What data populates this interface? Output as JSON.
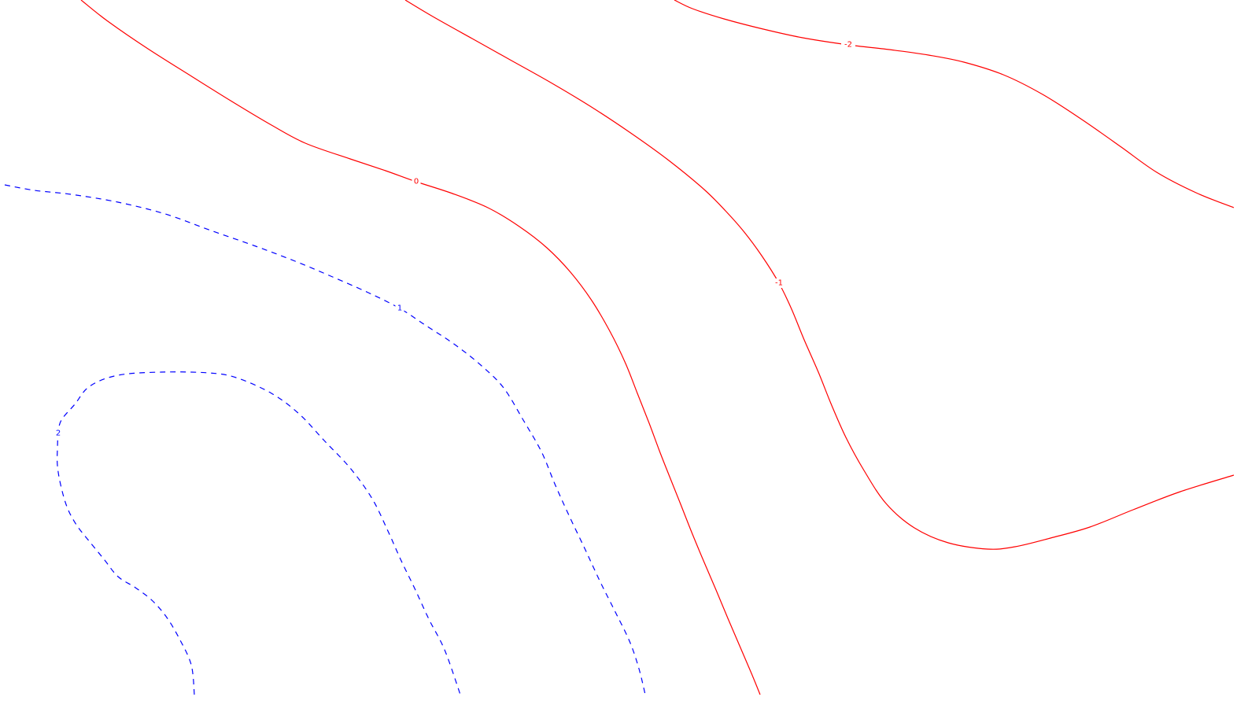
{
  "chart_data": {
    "type": "contour",
    "title": "",
    "xlabel": "",
    "ylabel": "",
    "grid": false,
    "legend": "none",
    "colors": {
      "positive": "#0000ff",
      "negative": "#ff0000",
      "background": "#ffffff"
    },
    "contours": [
      {
        "level": 2,
        "label": "2",
        "sign": "positive",
        "linestyle": "dashed",
        "color": "#0000ff",
        "path": [
          [
            247,
            883
          ],
          [
            243,
            845
          ],
          [
            228,
            812
          ],
          [
            212,
            785
          ],
          [
            193,
            763
          ],
          [
            172,
            747
          ],
          [
            150,
            733
          ],
          [
            133,
            712
          ],
          [
            115,
            690
          ],
          [
            97,
            667
          ],
          [
            85,
            644
          ],
          [
            77,
            616
          ],
          [
            73,
            592
          ],
          [
            73,
            570
          ],
          [
            74,
            551
          ],
          [
            78,
            534
          ],
          [
            95,
            514
          ],
          [
            114,
            491
          ],
          [
            150,
            477
          ],
          [
            205,
            473
          ],
          [
            265,
            474
          ],
          [
            300,
            480
          ],
          [
            345,
            500
          ],
          [
            380,
            526
          ],
          [
            412,
            560
          ],
          [
            445,
            595
          ],
          [
            473,
            634
          ],
          [
            493,
            675
          ],
          [
            510,
            713
          ],
          [
            527,
            748
          ],
          [
            545,
            787
          ],
          [
            565,
            826
          ],
          [
            585,
            883
          ]
        ],
        "label_at": 14
      },
      {
        "level": 1,
        "label": "1",
        "sign": "positive",
        "linestyle": "dashed",
        "color": "#0000ff",
        "path": [
          [
            6,
            235
          ],
          [
            44,
            242
          ],
          [
            90,
            247
          ],
          [
            150,
            257
          ],
          [
            210,
            272
          ],
          [
            268,
            293
          ],
          [
            325,
            313
          ],
          [
            375,
            332
          ],
          [
            418,
            350
          ],
          [
            468,
            372
          ],
          [
            508,
            392
          ],
          [
            540,
            413
          ],
          [
            578,
            438
          ],
          [
            612,
            465
          ],
          [
            640,
            493
          ],
          [
            665,
            534
          ],
          [
            688,
            574
          ],
          [
            705,
            615
          ],
          [
            723,
            655
          ],
          [
            743,
            697
          ],
          [
            762,
            738
          ],
          [
            781,
            776
          ],
          [
            800,
            815
          ],
          [
            812,
            850
          ],
          [
            820,
            883
          ]
        ],
        "label_at": 10
      },
      {
        "level": 0,
        "label": "0",
        "sign": "negative",
        "linestyle": "solid",
        "color": "#ff0000",
        "path": [
          [
            103,
            0
          ],
          [
            137,
            27
          ],
          [
            188,
            62
          ],
          [
            245,
            98
          ],
          [
            298,
            131
          ],
          [
            345,
            159
          ],
          [
            388,
            182
          ],
          [
            445,
            202
          ],
          [
            490,
            217
          ],
          [
            529,
            231
          ],
          [
            575,
            246
          ],
          [
            620,
            264
          ],
          [
            660,
            288
          ],
          [
            695,
            315
          ],
          [
            725,
            346
          ],
          [
            752,
            382
          ],
          [
            775,
            421
          ],
          [
            795,
            462
          ],
          [
            810,
            500
          ],
          [
            825,
            538
          ],
          [
            838,
            573
          ],
          [
            851,
            606
          ],
          [
            865,
            641
          ],
          [
            880,
            679
          ],
          [
            895,
            715
          ],
          [
            910,
            750
          ],
          [
            925,
            786
          ],
          [
            940,
            821
          ],
          [
            955,
            856
          ],
          [
            966,
            883
          ]
        ],
        "label_at": 9
      },
      {
        "level": -1,
        "label": "-1",
        "sign": "negative",
        "linestyle": "solid",
        "color": "#ff0000",
        "path": [
          [
            515,
            0
          ],
          [
            550,
            21
          ],
          [
            600,
            49
          ],
          [
            650,
            77
          ],
          [
            700,
            105
          ],
          [
            750,
            135
          ],
          [
            800,
            168
          ],
          [
            850,
            204
          ],
          [
            895,
            241
          ],
          [
            922,
            268
          ],
          [
            945,
            294
          ],
          [
            968,
            325
          ],
          [
            990,
            360
          ],
          [
            1006,
            393
          ],
          [
            1022,
            432
          ],
          [
            1040,
            473
          ],
          [
            1056,
            513
          ],
          [
            1075,
            556
          ],
          [
            1098,
            598
          ],
          [
            1126,
            640
          ],
          [
            1162,
            671
          ],
          [
            1205,
            690
          ],
          [
            1255,
            698
          ],
          [
            1290,
            695
          ],
          [
            1335,
            684
          ],
          [
            1385,
            670
          ],
          [
            1440,
            648
          ],
          [
            1500,
            625
          ],
          [
            1568,
            604
          ]
        ],
        "label_at": 12
      },
      {
        "level": -2,
        "label": "-2",
        "sign": "negative",
        "linestyle": "solid",
        "color": "#ff0000",
        "path": [
          [
            857,
            0
          ],
          [
            880,
            11
          ],
          [
            920,
            24
          ],
          [
            970,
            37
          ],
          [
            1020,
            48
          ],
          [
            1078,
            57
          ],
          [
            1130,
            63
          ],
          [
            1180,
            70
          ],
          [
            1225,
            79
          ],
          [
            1275,
            95
          ],
          [
            1325,
            120
          ],
          [
            1375,
            152
          ],
          [
            1425,
            187
          ],
          [
            1470,
            219
          ],
          [
            1520,
            245
          ],
          [
            1568,
            264
          ]
        ],
        "label_at": 5
      }
    ]
  }
}
